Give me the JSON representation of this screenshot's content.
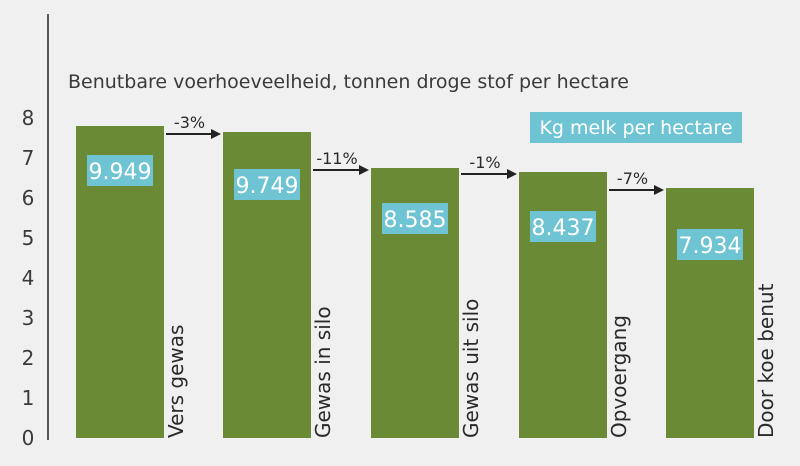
{
  "chart_data": {
    "type": "bar",
    "subtitle": "Benutbare voerhoeveelheid, tonnen droge stof per hectare",
    "categories": [
      "Vers gewas",
      "Gewas in silo",
      "Gewas uit silo",
      "Opvoergang",
      "Door koe benut"
    ],
    "values": [
      7.8,
      7.65,
      6.75,
      6.65,
      6.25
    ],
    "value_labels": [
      "9.949",
      "9.749",
      "8.585",
      "8.437",
      "7.934"
    ],
    "value_labels_title": "Kg melk per hectare",
    "changes": [
      "-3%",
      "-11%",
      "-1%",
      "-7%"
    ],
    "yticks": [
      "0",
      "1",
      "2",
      "3",
      "4",
      "5",
      "6",
      "7",
      "8"
    ],
    "ylim": [
      0,
      8
    ],
    "colors": {
      "bar": "#6a8a35",
      "label_box": "#6fc4d3",
      "arrow": "#222222",
      "axis": "#222222",
      "background": "#f0f0f0"
    }
  }
}
